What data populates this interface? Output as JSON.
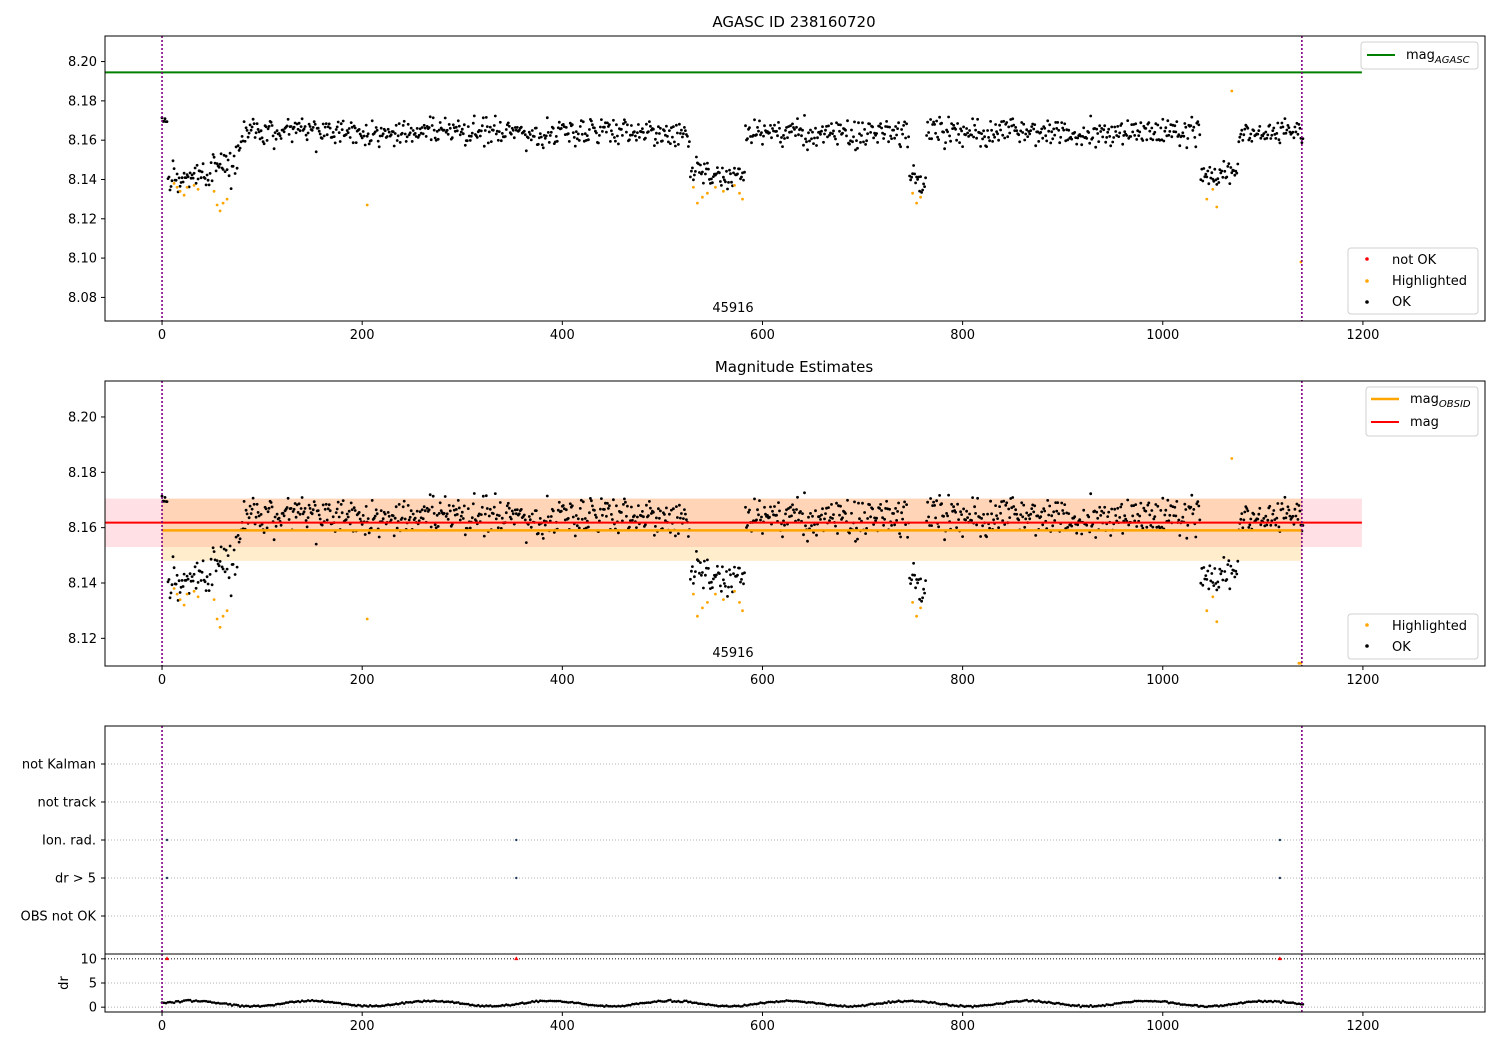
{
  "colors": {
    "ok": "#000000",
    "highlighted": "#ffa500",
    "not_ok": "#ff0000",
    "agasc_line": "#008000",
    "obsid_line": "#ffa500",
    "mag_line": "#ff0000",
    "obsid_band": "#ffa500",
    "mag_band": "#ff99aa",
    "obs_boundary": "#800080",
    "flag_dots": "#1f3a5f"
  },
  "chart_data": [
    {
      "type": "scatter",
      "title": "AGASC ID 238160720",
      "xlim": [
        -57,
        1322
      ],
      "ylim": [
        8.068,
        8.213
      ],
      "xticks": [
        0,
        200,
        400,
        600,
        800,
        1000,
        1200
      ],
      "yticks": [
        8.08,
        8.1,
        8.12,
        8.14,
        8.16,
        8.18,
        8.2
      ],
      "ytick_labels": [
        "8.08",
        "8.10",
        "8.12",
        "8.14",
        "8.16",
        "8.18",
        "8.20"
      ],
      "obs_boundaries": [
        0,
        1139
      ],
      "annotation": {
        "text": "45916",
        "x": 570
      },
      "hlines": [
        {
          "name": "mag_AGASC",
          "y": 8.1945,
          "x": [
            -57,
            1199
          ]
        }
      ],
      "legend": {
        "upper": {
          "loc": "upper right",
          "entries": [
            {
              "label": "mag",
              "sub": "AGASC",
              "kind": "line"
            }
          ]
        },
        "lower": {
          "loc": "lower right",
          "entries": [
            {
              "label": "not OK",
              "kind": "dot",
              "color": "#ff0000"
            },
            {
              "label": "Highlighted",
              "kind": "dot",
              "color": "#ffa500"
            },
            {
              "label": "OK",
              "kind": "dot",
              "color": "#000000"
            }
          ]
        }
      },
      "dip_segments": [
        [
          6,
          50
        ],
        [
          48,
          68
        ],
        [
          528,
          582
        ],
        [
          747,
          763
        ],
        [
          1038,
          1060
        ],
        [
          1060,
          1075
        ]
      ],
      "highlighted_points": [
        [
          12,
          8.138
        ],
        [
          15,
          8.136
        ],
        [
          18,
          8.134
        ],
        [
          22,
          8.132
        ],
        [
          25,
          8.136
        ],
        [
          32,
          8.137
        ],
        [
          36,
          8.135
        ],
        [
          52,
          8.134
        ],
        [
          55,
          8.127
        ],
        [
          58,
          8.124
        ],
        [
          61,
          8.128
        ],
        [
          65,
          8.13
        ],
        [
          205,
          8.127
        ],
        [
          531,
          8.136
        ],
        [
          535,
          8.128
        ],
        [
          540,
          8.131
        ],
        [
          545,
          8.133
        ],
        [
          553,
          8.136
        ],
        [
          561,
          8.134
        ],
        [
          572,
          8.137
        ],
        [
          577,
          8.133
        ],
        [
          580,
          8.13
        ],
        [
          750,
          8.133
        ],
        [
          754,
          8.128
        ],
        [
          758,
          8.131
        ],
        [
          1044,
          8.13
        ],
        [
          1050,
          8.135
        ],
        [
          1054,
          8.126
        ],
        [
          1069,
          8.185
        ],
        [
          1138,
          8.098
        ]
      ],
      "not_ok_points": []
    },
    {
      "type": "scatter",
      "title": "Magnitude Estimates",
      "xlim": [
        -57,
        1322
      ],
      "ylim": [
        8.11,
        8.213
      ],
      "xticks": [
        0,
        200,
        400,
        600,
        800,
        1000,
        1200
      ],
      "yticks": [
        8.12,
        8.14,
        8.16,
        8.18,
        8.2
      ],
      "ytick_labels": [
        "8.12",
        "8.14",
        "8.16",
        "8.18",
        "8.20"
      ],
      "obs_boundaries": [
        0,
        1139
      ],
      "annotation": {
        "text": "45916",
        "x": 570
      },
      "mag_obsid": {
        "value": 8.159,
        "band": [
          8.148,
          8.1705
        ],
        "x": [
          0,
          1139
        ]
      },
      "mag": {
        "value": 8.1618,
        "band": [
          8.153,
          8.1705
        ],
        "x": [
          -57,
          1199
        ]
      },
      "legend": {
        "upper": {
          "loc": "upper right",
          "entries": [
            {
              "label": "mag",
              "sub": "OBSID",
              "kind": "line",
              "color": "#ffa500"
            },
            {
              "label": "mag",
              "kind": "line",
              "color": "#ff0000"
            }
          ]
        },
        "lower": {
          "loc": "lower right",
          "entries": [
            {
              "label": "Highlighted",
              "kind": "dot",
              "color": "#ffa500"
            },
            {
              "label": "OK",
              "kind": "dot",
              "color": "#000000"
            }
          ]
        }
      },
      "highlighted_points": [
        [
          12,
          8.138
        ],
        [
          15,
          8.136
        ],
        [
          18,
          8.134
        ],
        [
          22,
          8.132
        ],
        [
          25,
          8.136
        ],
        [
          32,
          8.137
        ],
        [
          36,
          8.135
        ],
        [
          52,
          8.134
        ],
        [
          55,
          8.127
        ],
        [
          58,
          8.124
        ],
        [
          61,
          8.128
        ],
        [
          65,
          8.13
        ],
        [
          205,
          8.127
        ],
        [
          531,
          8.136
        ],
        [
          535,
          8.128
        ],
        [
          540,
          8.131
        ],
        [
          545,
          8.133
        ],
        [
          553,
          8.136
        ],
        [
          561,
          8.134
        ],
        [
          572,
          8.137
        ],
        [
          577,
          8.133
        ],
        [
          580,
          8.13
        ],
        [
          750,
          8.133
        ],
        [
          754,
          8.128
        ],
        [
          758,
          8.131
        ],
        [
          1044,
          8.13
        ],
        [
          1050,
          8.135
        ],
        [
          1054,
          8.126
        ],
        [
          1069,
          8.185
        ],
        [
          1136,
          8.111
        ],
        [
          1138,
          8.111
        ]
      ]
    },
    {
      "type": "scatter",
      "title": "",
      "xlim": [
        -57,
        1322
      ],
      "categories": [
        "OBS not OK",
        "dr > 5",
        "Ion. rad.",
        "not track",
        "not Kalman"
      ],
      "obs_boundaries": [
        0,
        1139
      ],
      "flags": [
        {
          "category": "Ion. rad.",
          "x": [
            5,
            354,
            1117
          ]
        },
        {
          "category": "dr > 5",
          "x": [
            5,
            354,
            1117
          ]
        }
      ]
    },
    {
      "type": "scatter",
      "title": "",
      "ylabel": "dr",
      "xlim": [
        -57,
        1322
      ],
      "ylim": [
        -1,
        11
      ],
      "xticks": [
        0,
        200,
        400,
        600,
        800,
        1000,
        1200
      ],
      "yticks": [
        0,
        5,
        10
      ],
      "ytick_labels": [
        "0",
        "5",
        "10"
      ],
      "obs_boundaries": [
        0,
        1139
      ],
      "threshold_line": 10,
      "spikes": [
        [
          5,
          10
        ],
        [
          354,
          10
        ],
        [
          1117,
          10
        ]
      ]
    }
  ]
}
